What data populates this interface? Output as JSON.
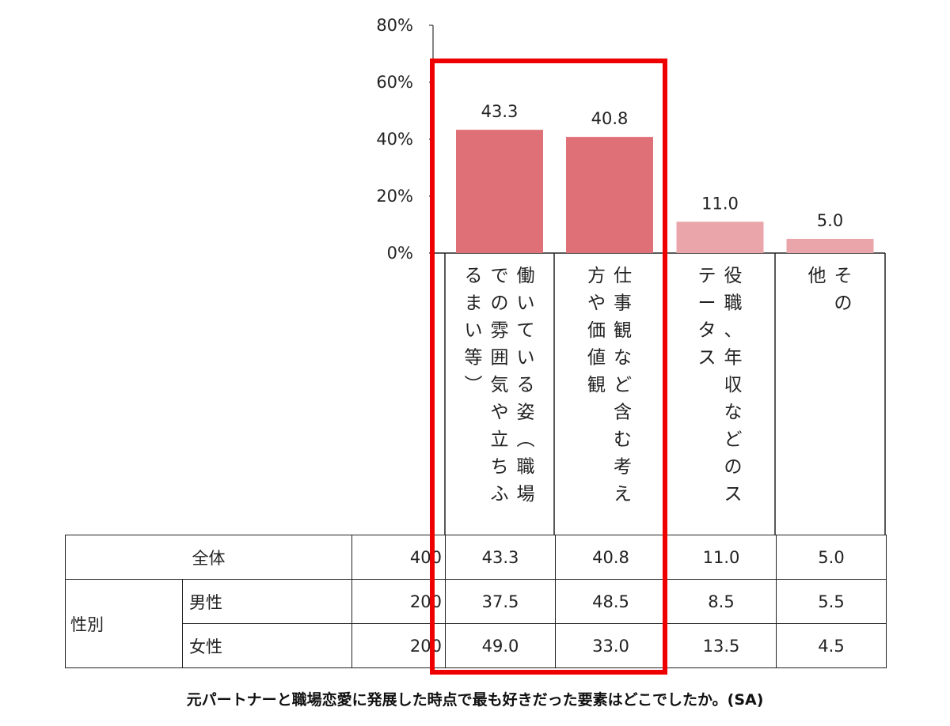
{
  "chart_data": {
    "type": "bar",
    "categories": [
      "働いている姿（職場での雰囲気や立ちふるまい等）",
      "仕事観など含む考え方や価値観",
      "役職、年収などのステータス",
      "その他"
    ],
    "values": [
      43.3,
      40.8,
      11.0,
      5.0
    ],
    "value_labels": [
      "43.3",
      "40.8",
      "11.0",
      "5.0"
    ],
    "category_columns": [
      [
        "働いている姿︵職場",
        "での雰囲気や立ちふ",
        "るまい等︶"
      ],
      [
        "仕事観など含む考え",
        "方や価値観"
      ],
      [
        "役職、年収などのス",
        "テータス"
      ],
      [
        "その",
        "他"
      ]
    ],
    "bar_colors": [
      "#e07077",
      "#e07077",
      "#eaa5aa",
      "#eaa5aa"
    ],
    "yticks": [
      "0%",
      "20%",
      "40%",
      "60%",
      "80%"
    ],
    "ylim": [
      0,
      80
    ],
    "title": "",
    "xlabel": "",
    "ylabel": "",
    "grid": false
  },
  "table": {
    "total_label": "全体",
    "group_label": "性別",
    "rows": [
      {
        "label": "全体",
        "n": "400",
        "values": [
          "43.3",
          "40.8",
          "11.0",
          "5.0"
        ]
      },
      {
        "label": "男性",
        "n": "200",
        "values": [
          "37.5",
          "48.5",
          "8.5",
          "5.5"
        ]
      },
      {
        "label": "女性",
        "n": "200",
        "values": [
          "49.0",
          "33.0",
          "13.5",
          "4.5"
        ]
      }
    ]
  },
  "caption": "元パートナーと職場恋愛に発展した時点で最も好きだった要素はどこでしたか。(SA)",
  "highlight_color": "#ee0000"
}
